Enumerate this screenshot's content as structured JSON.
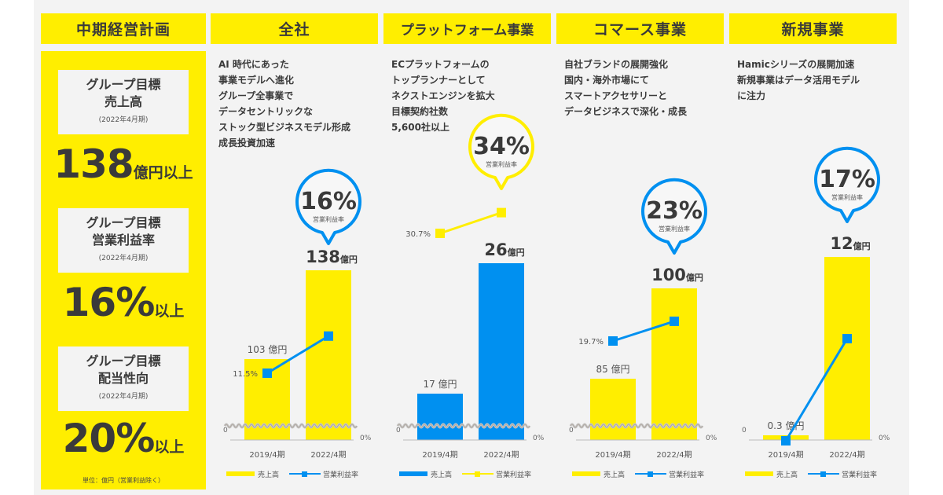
{
  "headers": {
    "plan": "中期経営計画",
    "company": "全社",
    "platform": "プラットフォーム事業",
    "commerce": "コマース事業",
    "new_business": "新規事業"
  },
  "targets": [
    {
      "title1": "グループ目標",
      "title2": "売上高",
      "period": "(2022年4月期)",
      "value": "138",
      "unit": "億円以上"
    },
    {
      "title1": "グループ目標",
      "title2": "営業利益率",
      "period": "(2022年4月期)",
      "value": "16%",
      "unit": "以上"
    },
    {
      "title1": "グループ目標",
      "title2": "配当性向",
      "period": "(2022年4月期)",
      "value": "20%",
      "unit": "以上"
    }
  ],
  "unit_note": "単位：億円（営業利益除く）",
  "colors": {
    "yellow": "#ffee00",
    "blue": "#0090f0",
    "background": "#f3f3f3",
    "text": "#3a3a3a"
  },
  "chart_data": [
    {
      "type": "bar",
      "panel": "全社",
      "description": [
        "AI 時代にあった",
        "事業モデルへ進化",
        "グループ全事業で",
        "データセントリックな",
        "ストック型ビジネスモデル形成",
        "成長投資加速"
      ],
      "categories": [
        "2019/4期",
        "2022/4期"
      ],
      "series": [
        {
          "name": "売上高",
          "kind": "bar",
          "color": "#ffee00",
          "values": [
            103,
            138
          ],
          "labels": [
            "103 億円",
            "138"
          ]
        },
        {
          "name": "営業利益率",
          "kind": "line",
          "color": "#0090f0",
          "values": [
            11.5,
            16
          ],
          "labels": [
            "11.5%",
            ""
          ]
        }
      ],
      "bubble": {
        "value": "16%",
        "label": "営業利益率",
        "color": "#0090f0"
      },
      "bar_unit": "億円",
      "axis_left_zero": "0",
      "axis_right_zero": "0%",
      "axis_break": true
    },
    {
      "type": "bar",
      "panel": "プラットフォーム事業",
      "description": [
        "ECプラットフォームの",
        "トップランナーとして",
        "ネクストエンジンを拡大",
        "目標契約社数",
        "5,600社以上"
      ],
      "categories": [
        "2019/4期",
        "2022/4期"
      ],
      "series": [
        {
          "name": "売上高",
          "kind": "bar",
          "color": "#0090f0",
          "values": [
            17,
            26
          ],
          "labels": [
            "17 億円",
            "26"
          ]
        },
        {
          "name": "営業利益率",
          "kind": "line",
          "color": "#ffee00",
          "values": [
            30.7,
            34
          ],
          "labels": [
            "30.7%",
            ""
          ]
        }
      ],
      "bubble": {
        "value": "34%",
        "label": "営業利益率",
        "color": "#ffee00"
      },
      "bar_unit": "億円",
      "axis_left_zero": "0",
      "axis_right_zero": "0%",
      "axis_break": true
    },
    {
      "type": "bar",
      "panel": "コマース事業",
      "description": [
        "自社ブランドの展開強化",
        "国内・海外市場にて",
        "スマートアクセサリーと",
        "データビジネスで深化・成長"
      ],
      "categories": [
        "2019/4期",
        "2022/4期"
      ],
      "series": [
        {
          "name": "売上高",
          "kind": "bar",
          "color": "#ffee00",
          "values": [
            85,
            100
          ],
          "labels": [
            "85 億円",
            "100"
          ]
        },
        {
          "name": "営業利益率",
          "kind": "line",
          "color": "#0090f0",
          "values": [
            19.7,
            23
          ],
          "labels": [
            "19.7%",
            ""
          ]
        }
      ],
      "bubble": {
        "value": "23%",
        "label": "営業利益率",
        "color": "#0090f0"
      },
      "bar_unit": "億円",
      "axis_left_zero": "0",
      "axis_right_zero": "0%",
      "axis_break": true
    },
    {
      "type": "bar",
      "panel": "新規事業",
      "description": [
        "Hamicシリーズの展開加速",
        "新規事業はデータ活用モデル",
        "に注力"
      ],
      "categories": [
        "2019/4期",
        "2022/4期"
      ],
      "series": [
        {
          "name": "売上高",
          "kind": "bar",
          "color": "#ffee00",
          "values": [
            0.3,
            12
          ],
          "labels": [
            "0.3 億円",
            "12"
          ]
        },
        {
          "name": "営業利益率",
          "kind": "line",
          "color": "#0090f0",
          "values": [
            0,
            17
          ],
          "labels": [
            "",
            ""
          ]
        }
      ],
      "bubble": {
        "value": "17%",
        "label": "営業利益率",
        "color": "#0090f0"
      },
      "bar_unit": "億円",
      "axis_left_zero": "0",
      "axis_right_zero": "0%",
      "axis_break": false
    }
  ]
}
